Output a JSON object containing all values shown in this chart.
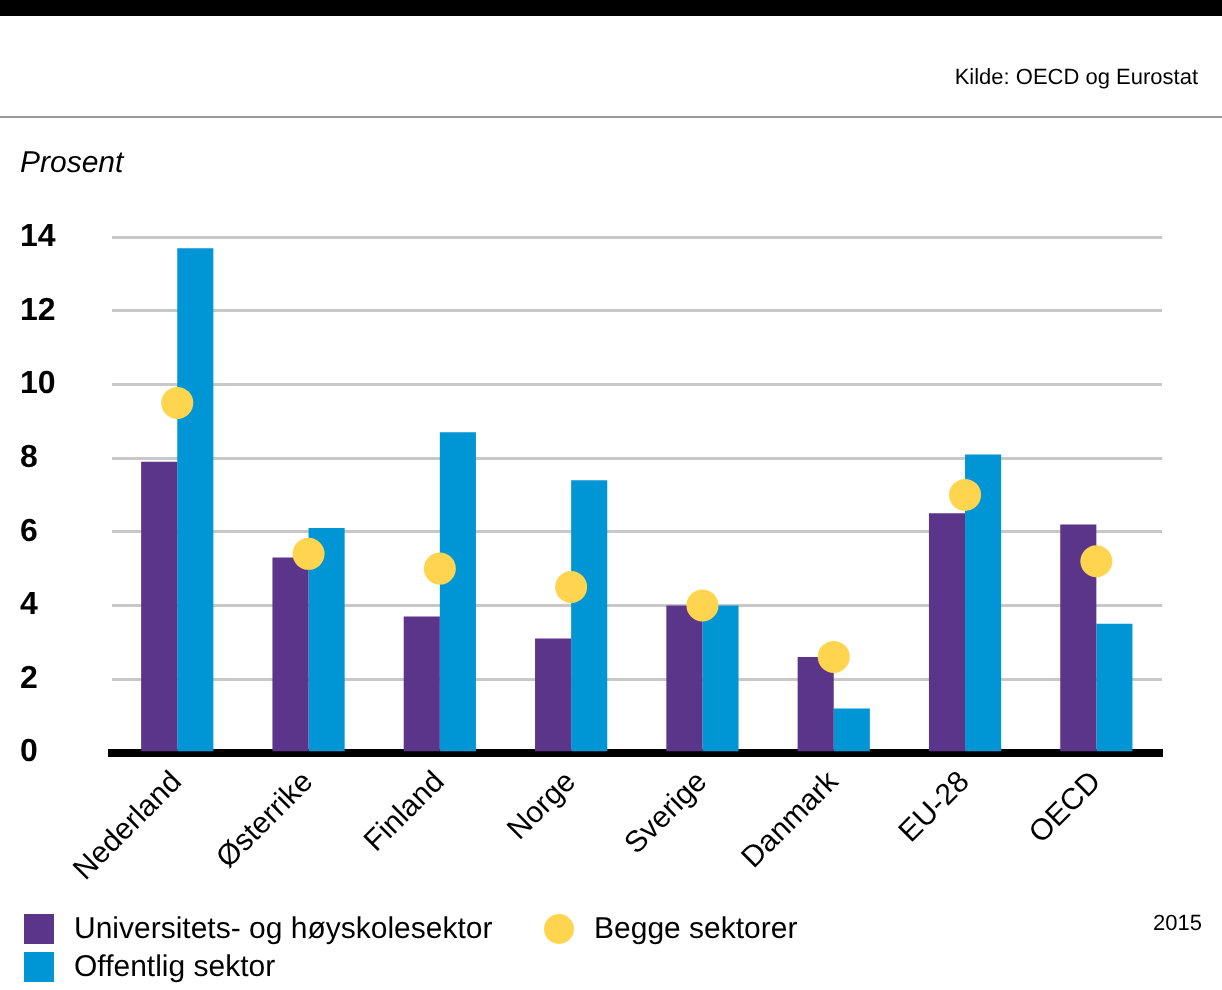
{
  "chart_data": {
    "type": "bar",
    "ylabel": "Prosent",
    "categories": [
      "Nederland",
      "Østerrike",
      "Finland",
      "Norge",
      "Sverige",
      "Danmark",
      "EU-28",
      "OECD"
    ],
    "series": [
      {
        "name": "Universitets- og høyskolesektor",
        "color": "#5b3589",
        "values": [
          7.9,
          5.3,
          3.7,
          3.1,
          4.0,
          2.6,
          6.5,
          6.2
        ]
      },
      {
        "name": "Offentlig sektor",
        "color": "#0096d6",
        "values": [
          13.7,
          6.1,
          8.7,
          7.4,
          4.0,
          1.2,
          8.1,
          3.5
        ]
      },
      {
        "name": "Begge sektorer",
        "type": "scatter",
        "marker": "circle",
        "color": "#ffd54f",
        "x": [
          "Nederland",
          "Østerrike",
          "Finland",
          "Norge",
          "Sverige",
          "Danmark",
          "EU-28",
          "OECD"
        ],
        "values": [
          9.5,
          5.4,
          5.0,
          4.5,
          4.0,
          2.6,
          7.0,
          5.2
        ]
      }
    ],
    "ylim": [
      0,
      14
    ],
    "yticks": [
      0,
      2,
      4,
      6,
      8,
      10,
      12,
      14
    ],
    "grid": "y",
    "legend": "bottom",
    "annotations": [
      "Kilde: OECD og Eurostat",
      "2015"
    ]
  }
}
